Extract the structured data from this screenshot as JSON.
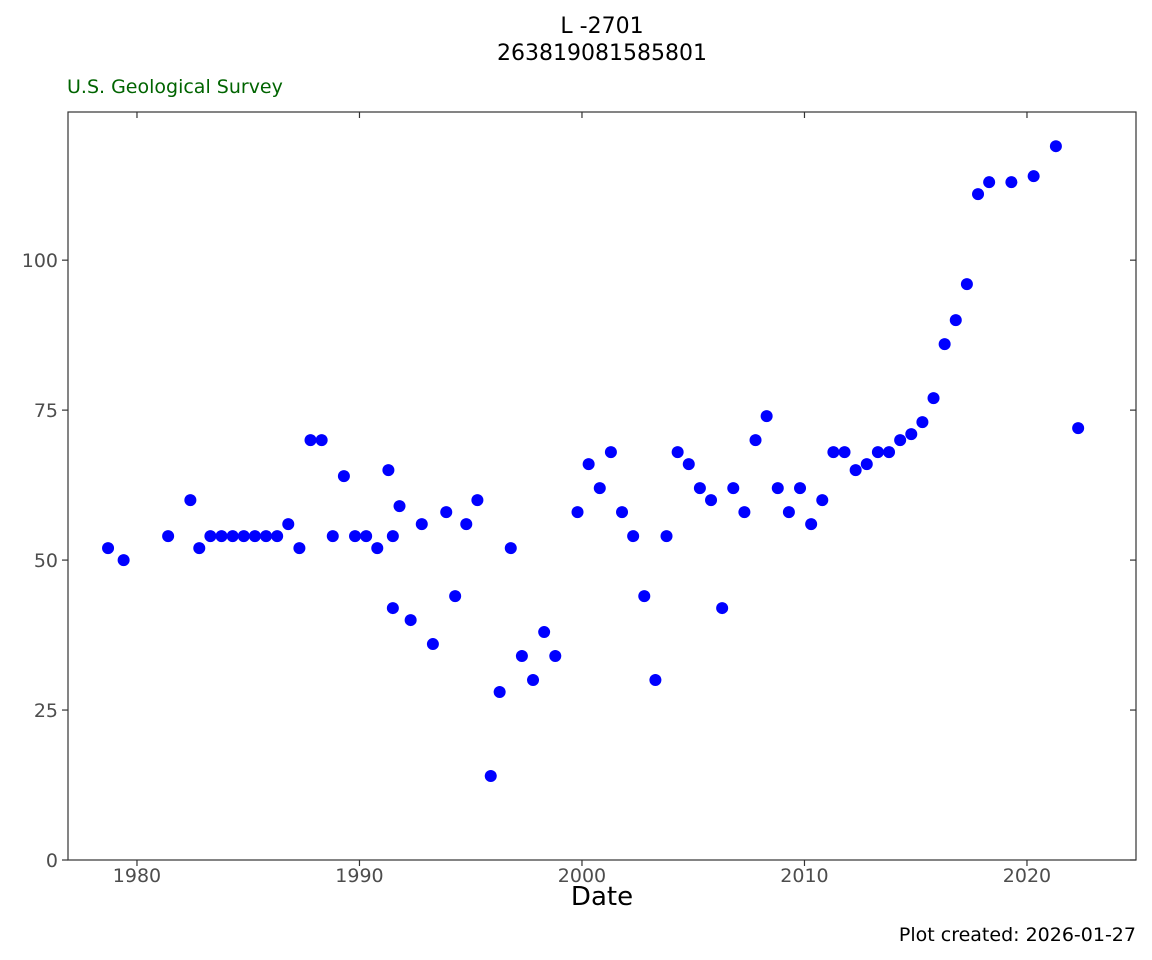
{
  "header": {
    "title_line1": "L -2701",
    "title_line2": "263819081585801",
    "agency": "U.S. Geological Survey"
  },
  "footer": {
    "caption": "Plot created: 2026-01-27"
  },
  "colors": {
    "points": "#0000ff",
    "agency_text": "#006400",
    "axis": "#333333",
    "tick_text": "#4d4d4d"
  },
  "chart_data": {
    "type": "scatter",
    "title": "L -2701\n263819081585801",
    "xlabel": "Date",
    "ylabel": "",
    "xlim": [
      1976.9,
      2024.9
    ],
    "ylim": [
      0,
      124.7
    ],
    "x_ticks": [
      1980,
      1990,
      2000,
      2010,
      2020
    ],
    "y_ticks": [
      0,
      25,
      50,
      75,
      100
    ],
    "x_tick_labels": [
      "1980",
      "1990",
      "2000",
      "2010",
      "2020"
    ],
    "y_tick_labels": [
      "0",
      "25",
      "50",
      "75",
      "100"
    ],
    "grid": false,
    "legend": "none",
    "series": [
      {
        "points": [
          [
            1978.7,
            52
          ],
          [
            1979.4,
            50
          ],
          [
            1981.4,
            54
          ],
          [
            1982.4,
            60
          ],
          [
            1982.8,
            52
          ],
          [
            1983.3,
            54
          ],
          [
            1983.8,
            54
          ],
          [
            1984.3,
            54
          ],
          [
            1984.8,
            54
          ],
          [
            1985.3,
            54
          ],
          [
            1985.8,
            54
          ],
          [
            1986.3,
            54
          ],
          [
            1986.8,
            56
          ],
          [
            1987.3,
            52
          ],
          [
            1987.8,
            70
          ],
          [
            1988.3,
            70
          ],
          [
            1988.8,
            54
          ],
          [
            1989.3,
            64
          ],
          [
            1989.8,
            54
          ],
          [
            1990.3,
            54
          ],
          [
            1990.8,
            52
          ],
          [
            1991.3,
            65
          ],
          [
            1991.5,
            54
          ],
          [
            1991.5,
            42
          ],
          [
            1991.8,
            59
          ],
          [
            1992.3,
            40
          ],
          [
            1992.8,
            56
          ],
          [
            1993.3,
            36
          ],
          [
            1993.9,
            58
          ],
          [
            1994.3,
            44
          ],
          [
            1994.8,
            56
          ],
          [
            1995.3,
            60
          ],
          [
            1995.9,
            14
          ],
          [
            1996.3,
            28
          ],
          [
            1996.8,
            52
          ],
          [
            1997.3,
            34
          ],
          [
            1997.8,
            30
          ],
          [
            1998.3,
            38
          ],
          [
            1998.8,
            34
          ],
          [
            1999.8,
            58
          ],
          [
            2000.3,
            66
          ],
          [
            2000.8,
            62
          ],
          [
            2001.3,
            68
          ],
          [
            2001.8,
            58
          ],
          [
            2002.3,
            54
          ],
          [
            2002.8,
            44
          ],
          [
            2003.3,
            30
          ],
          [
            2003.8,
            54
          ],
          [
            2004.3,
            68
          ],
          [
            2004.8,
            66
          ],
          [
            2005.3,
            62
          ],
          [
            2005.8,
            60
          ],
          [
            2006.3,
            42
          ],
          [
            2006.8,
            62
          ],
          [
            2007.3,
            58
          ],
          [
            2007.8,
            70
          ],
          [
            2008.3,
            74
          ],
          [
            2008.8,
            62
          ],
          [
            2009.3,
            58
          ],
          [
            2009.8,
            62
          ],
          [
            2010.3,
            56
          ],
          [
            2010.8,
            60
          ],
          [
            2011.3,
            68
          ],
          [
            2011.8,
            68
          ],
          [
            2012.3,
            65
          ],
          [
            2012.8,
            66
          ],
          [
            2013.3,
            68
          ],
          [
            2013.8,
            68
          ],
          [
            2014.3,
            70
          ],
          [
            2014.8,
            71
          ],
          [
            2015.3,
            73
          ],
          [
            2015.8,
            77
          ],
          [
            2016.3,
            86
          ],
          [
            2016.8,
            90
          ],
          [
            2017.3,
            96
          ],
          [
            2017.8,
            111
          ],
          [
            2018.3,
            113
          ],
          [
            2019.3,
            113
          ],
          [
            2020.3,
            114
          ],
          [
            2021.3,
            119
          ],
          [
            2022.3,
            72
          ]
        ]
      }
    ]
  }
}
